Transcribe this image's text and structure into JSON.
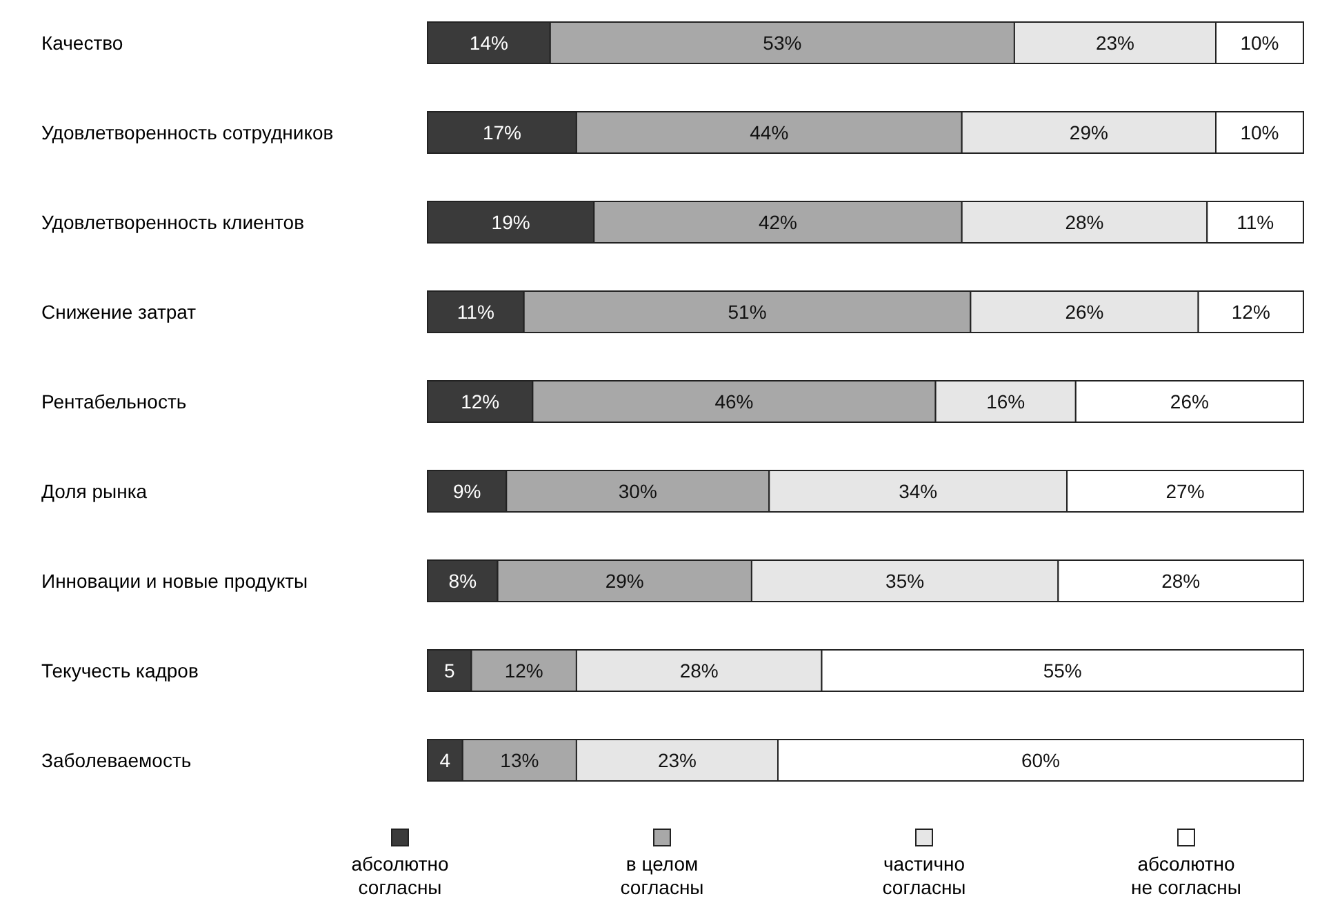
{
  "chart_data": {
    "type": "bar",
    "orientation": "horizontal",
    "stacked": true,
    "legend": "bottom",
    "tick_labels": "y",
    "xlim": [
      0,
      100
    ],
    "categories": [
      "Качество",
      "Удовлетворенность сотрудников",
      "Удовлетворенность клиентов",
      "Снижение затрат",
      "Рентабельность",
      "Доля рынка",
      "Инновации и новые продукты",
      "Текучесть кадров",
      "Заболеваемость"
    ],
    "series": [
      {
        "name": "абсолютно\nсогласны",
        "color": "#3a3a3a",
        "values": [
          14,
          17,
          19,
          11,
          12,
          9,
          8,
          5,
          4
        ],
        "value_labels": [
          "14%",
          "17%",
          "19%",
          "11%",
          "12%",
          "9%",
          "8%",
          "5",
          "4"
        ]
      },
      {
        "name": "в целом\nсогласны",
        "color": "#a8a8a8",
        "values": [
          53,
          44,
          42,
          51,
          46,
          30,
          29,
          12,
          13
        ],
        "value_labels": [
          "53%",
          "44%",
          "42%",
          "51%",
          "46%",
          "30%",
          "29%",
          "12%",
          "13%"
        ]
      },
      {
        "name": "частично\nсогласны",
        "color": "#e6e6e6",
        "values": [
          23,
          29,
          28,
          26,
          16,
          34,
          35,
          28,
          23
        ],
        "value_labels": [
          "23%",
          "29%",
          "28%",
          "26%",
          "16%",
          "34%",
          "35%",
          "28%",
          "23%"
        ]
      },
      {
        "name": "абсолютно\nне согласны",
        "color": "#ffffff",
        "values": [
          10,
          10,
          11,
          12,
          26,
          27,
          28,
          55,
          60
        ],
        "value_labels": [
          "10%",
          "10%",
          "11%",
          "12%",
          "26%",
          "27%",
          "28%",
          "55%",
          "60%"
        ]
      }
    ]
  }
}
